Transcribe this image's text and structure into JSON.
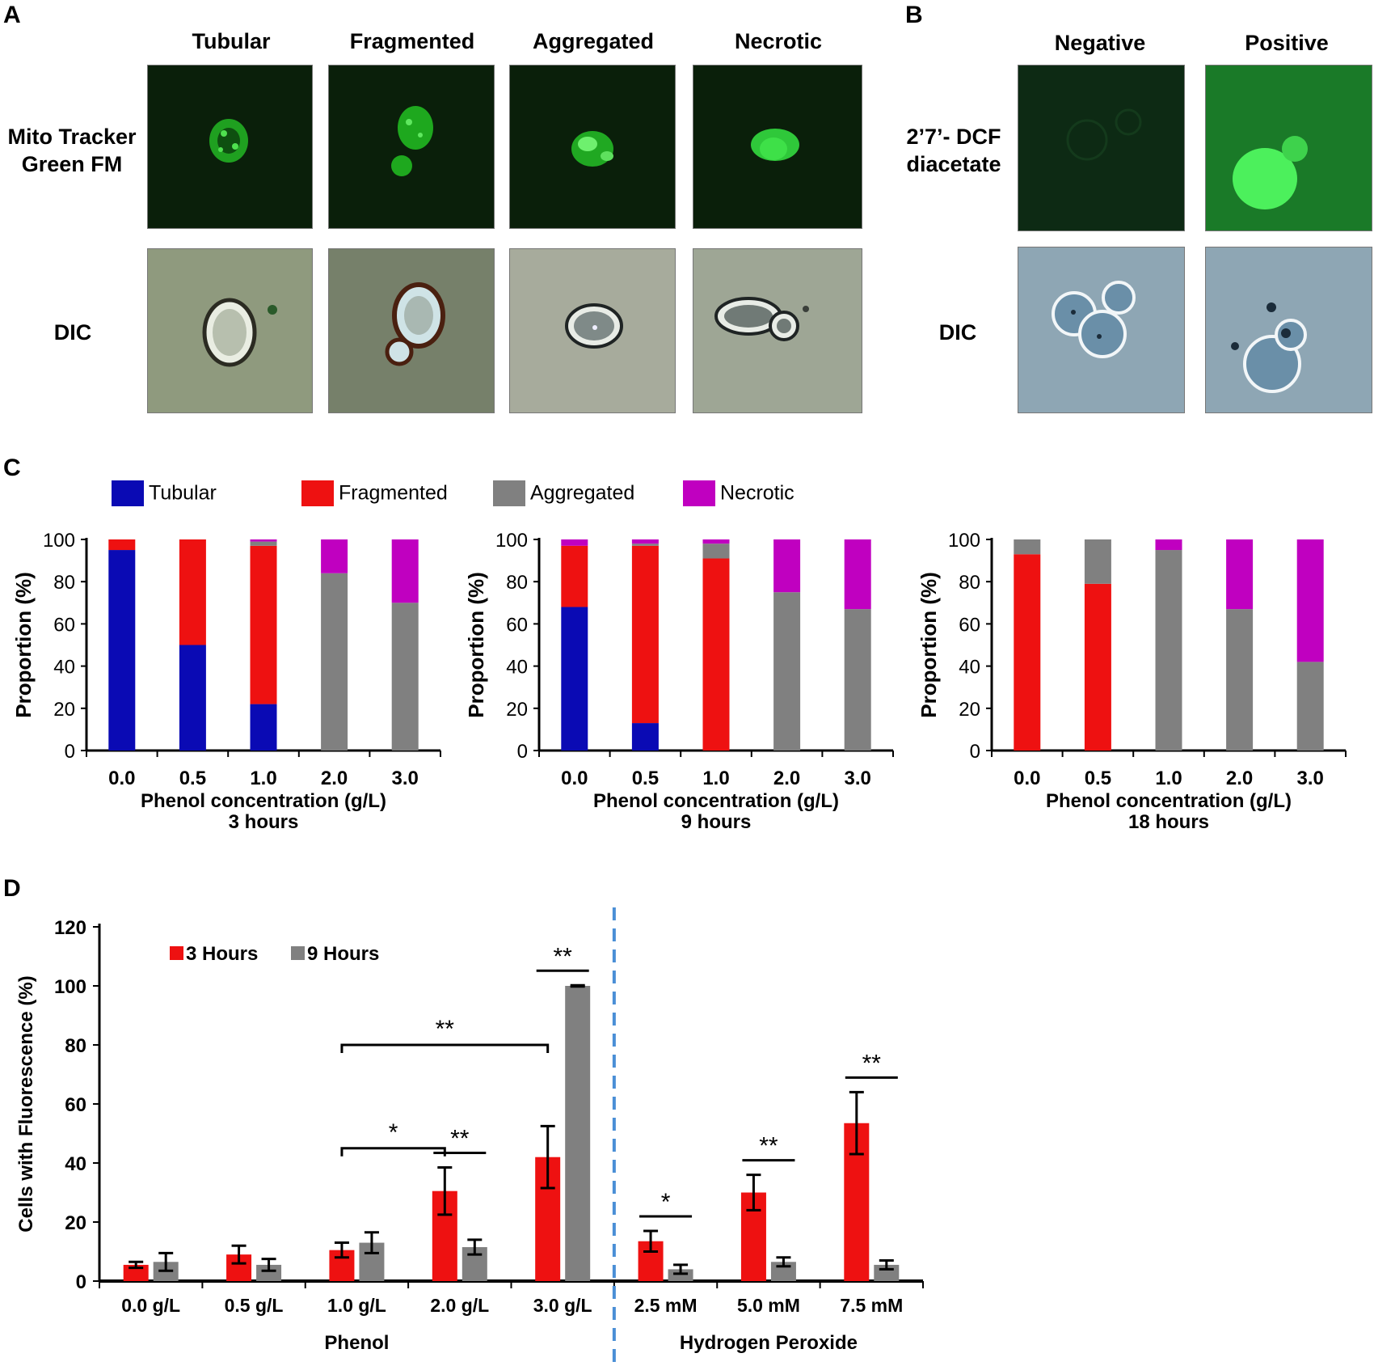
{
  "panel_a": {
    "letter": "A",
    "columns": [
      "Tubular",
      "Fragmented",
      "Aggregated",
      "Necrotic"
    ],
    "row_labels": [
      "Mito Tracker\nGreen FM",
      "DIC"
    ]
  },
  "panel_b": {
    "letter": "B",
    "columns": [
      "Negative",
      "Positive"
    ],
    "row_labels": [
      "2’7’- DCF\ndiacetate",
      "DIC"
    ]
  },
  "panel_c": {
    "letter": "C",
    "legend": [
      "Tubular",
      "Fragmented",
      "Aggregated",
      "Necrotic"
    ]
  },
  "panel_d": {
    "letter": "D"
  },
  "colors": {
    "tubular": "#0a0ab4",
    "fragmented": "#ee1111",
    "aggregated": "#808080",
    "necrotic": "#c000c0",
    "hours3": "#ee1111",
    "hours9": "#808080",
    "divider": "#4a8fd6"
  },
  "chart_data": [
    {
      "type": "bar",
      "stacked": true,
      "categories": [
        "0.0",
        "0.5",
        "1.0",
        "2.0",
        "3.0"
      ],
      "series": [
        {
          "name": "Tubular",
          "values": [
            95,
            50,
            22,
            0,
            0
          ]
        },
        {
          "name": "Fragmented",
          "values": [
            5,
            50,
            75,
            0,
            0
          ]
        },
        {
          "name": "Aggregated",
          "values": [
            0,
            0,
            2,
            84,
            70
          ]
        },
        {
          "name": "Necrotic",
          "values": [
            0,
            0,
            1,
            16,
            30
          ]
        }
      ],
      "xlabel": "Phenol concentration (g/L)",
      "subtitle": "3 hours",
      "ylabel": "Proportion (%)",
      "ylim": [
        0,
        100
      ],
      "yticks": [
        0,
        20,
        40,
        60,
        80,
        100
      ]
    },
    {
      "type": "bar",
      "stacked": true,
      "categories": [
        "0.0",
        "0.5",
        "1.0",
        "2.0",
        "3.0"
      ],
      "series": [
        {
          "name": "Tubular",
          "values": [
            68,
            13,
            0,
            0,
            0
          ]
        },
        {
          "name": "Fragmented",
          "values": [
            29,
            84,
            91,
            0,
            0
          ]
        },
        {
          "name": "Aggregated",
          "values": [
            0,
            1,
            7,
            75,
            67
          ]
        },
        {
          "name": "Necrotic",
          "values": [
            3,
            2,
            2,
            25,
            33
          ]
        }
      ],
      "xlabel": "Phenol concentration (g/L)",
      "subtitle": "9 hours",
      "ylabel": "Proportion (%)",
      "ylim": [
        0,
        100
      ],
      "yticks": [
        0,
        20,
        40,
        60,
        80,
        100
      ]
    },
    {
      "type": "bar",
      "stacked": true,
      "categories": [
        "0.0",
        "0.5",
        "1.0",
        "2.0",
        "3.0"
      ],
      "series": [
        {
          "name": "Tubular",
          "values": [
            0,
            0,
            0,
            0,
            0
          ]
        },
        {
          "name": "Fragmented",
          "values": [
            93,
            79,
            0,
            0,
            0
          ]
        },
        {
          "name": "Aggregated",
          "values": [
            7,
            21,
            95,
            67,
            42
          ]
        },
        {
          "name": "Necrotic",
          "values": [
            0,
            0,
            5,
            33,
            58
          ]
        }
      ],
      "xlabel": "Phenol concentration (g/L)",
      "subtitle": "18 hours",
      "ylabel": "Proportion (%)",
      "ylim": [
        0,
        100
      ],
      "yticks": [
        0,
        20,
        40,
        60,
        80,
        100
      ]
    },
    {
      "type": "bar",
      "categories": [
        "0.0 g/L",
        "0.5 g/L",
        "1.0 g/L",
        "2.0 g/L",
        "3.0 g/L",
        "2.5 mM",
        "5.0 mM",
        "7.5 mM"
      ],
      "groups": [
        {
          "label": "Phenol",
          "categories": [
            "0.0 g/L",
            "0.5 g/L",
            "1.0 g/L",
            "2.0 g/L",
            "3.0 g/L"
          ]
        },
        {
          "label": "Hydrogen Peroxide",
          "categories": [
            "2.5 mM",
            "5.0 mM",
            "7.5 mM"
          ]
        }
      ],
      "series": [
        {
          "name": "3 Hours",
          "values": [
            5.5,
            9,
            10.5,
            30.5,
            42,
            13.5,
            30,
            53.5
          ],
          "errors": [
            1,
            3,
            2.5,
            8,
            10.5,
            3.5,
            6,
            10.5
          ]
        },
        {
          "name": "9 Hours",
          "values": [
            6.5,
            5.5,
            13,
            11.5,
            100,
            4,
            6.5,
            5.5
          ],
          "errors": [
            3,
            2,
            3.5,
            2.5,
            0.2,
            1.5,
            1.5,
            1.5
          ]
        }
      ],
      "ylabel": "Cells with Fluorescence (%)",
      "ylim": [
        0,
        120
      ],
      "yticks": [
        0,
        20,
        40,
        60,
        80,
        100,
        120
      ],
      "annotations": [
        {
          "text": "**",
          "type": "within",
          "category": "2.0 g/L"
        },
        {
          "text": "**",
          "type": "within",
          "category": "3.0 g/L"
        },
        {
          "text": "*",
          "type": "between",
          "from": "1.0 g/L",
          "to": "2.0 g/L"
        },
        {
          "text": "**",
          "type": "between",
          "from": "1.0 g/L",
          "to": "3.0 g/L"
        },
        {
          "text": "*",
          "type": "within",
          "category": "2.5 mM"
        },
        {
          "text": "**",
          "type": "within",
          "category": "5.0 mM"
        },
        {
          "text": "**",
          "type": "within",
          "category": "7.5 mM"
        }
      ]
    }
  ]
}
